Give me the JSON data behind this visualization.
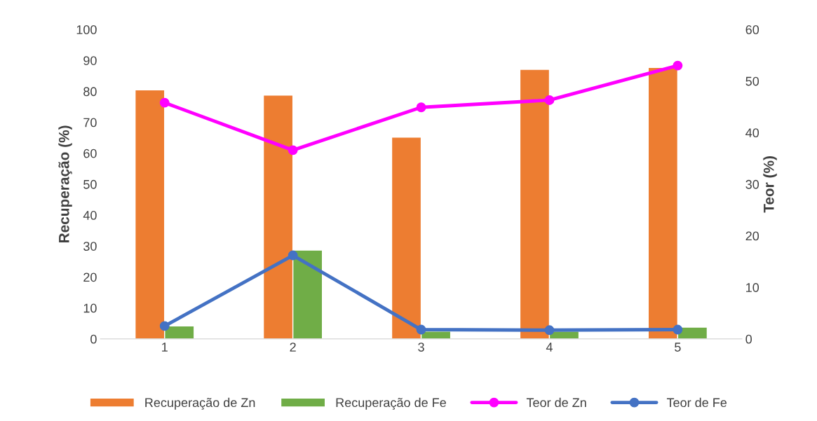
{
  "chart_data": {
    "type": "bar",
    "ylabel": "Recuperação (%)",
    "y2label": "Teor (%)",
    "categories": [
      "1",
      "2",
      "3",
      "4",
      "5"
    ],
    "series": [
      {
        "name": "Recuperação de Zn",
        "color": "#ed7d31",
        "values": [
          80.5,
          78.8,
          65.2,
          87.1,
          87.7
        ]
      },
      {
        "name": "Recuperação de Fe",
        "color": "#70ad47",
        "values": [
          4.2,
          28.7,
          2.5,
          2.5,
          3.8
        ]
      },
      {
        "name": "Teor de Zn",
        "type": "line",
        "axis": "y2",
        "color": "#ff00ff",
        "values": [
          45.8,
          36.6,
          44.9,
          46.3,
          53.0
        ]
      },
      {
        "name": "Teor de Fe",
        "type": "line",
        "axis": "y2",
        "color": "#4472c4",
        "values": [
          2.5,
          16.2,
          1.8,
          1.7,
          1.8
        ]
      }
    ],
    "ylim": [
      0,
      100
    ],
    "yticks": [
      0,
      10,
      20,
      30,
      40,
      50,
      60,
      70,
      80,
      90,
      100
    ],
    "y2lim": [
      0,
      60
    ],
    "y2ticks": [
      0,
      10,
      20,
      30,
      40,
      50,
      60
    ],
    "marker": "circle",
    "line_style": "solid",
    "grid": false,
    "legend": "bottom"
  }
}
